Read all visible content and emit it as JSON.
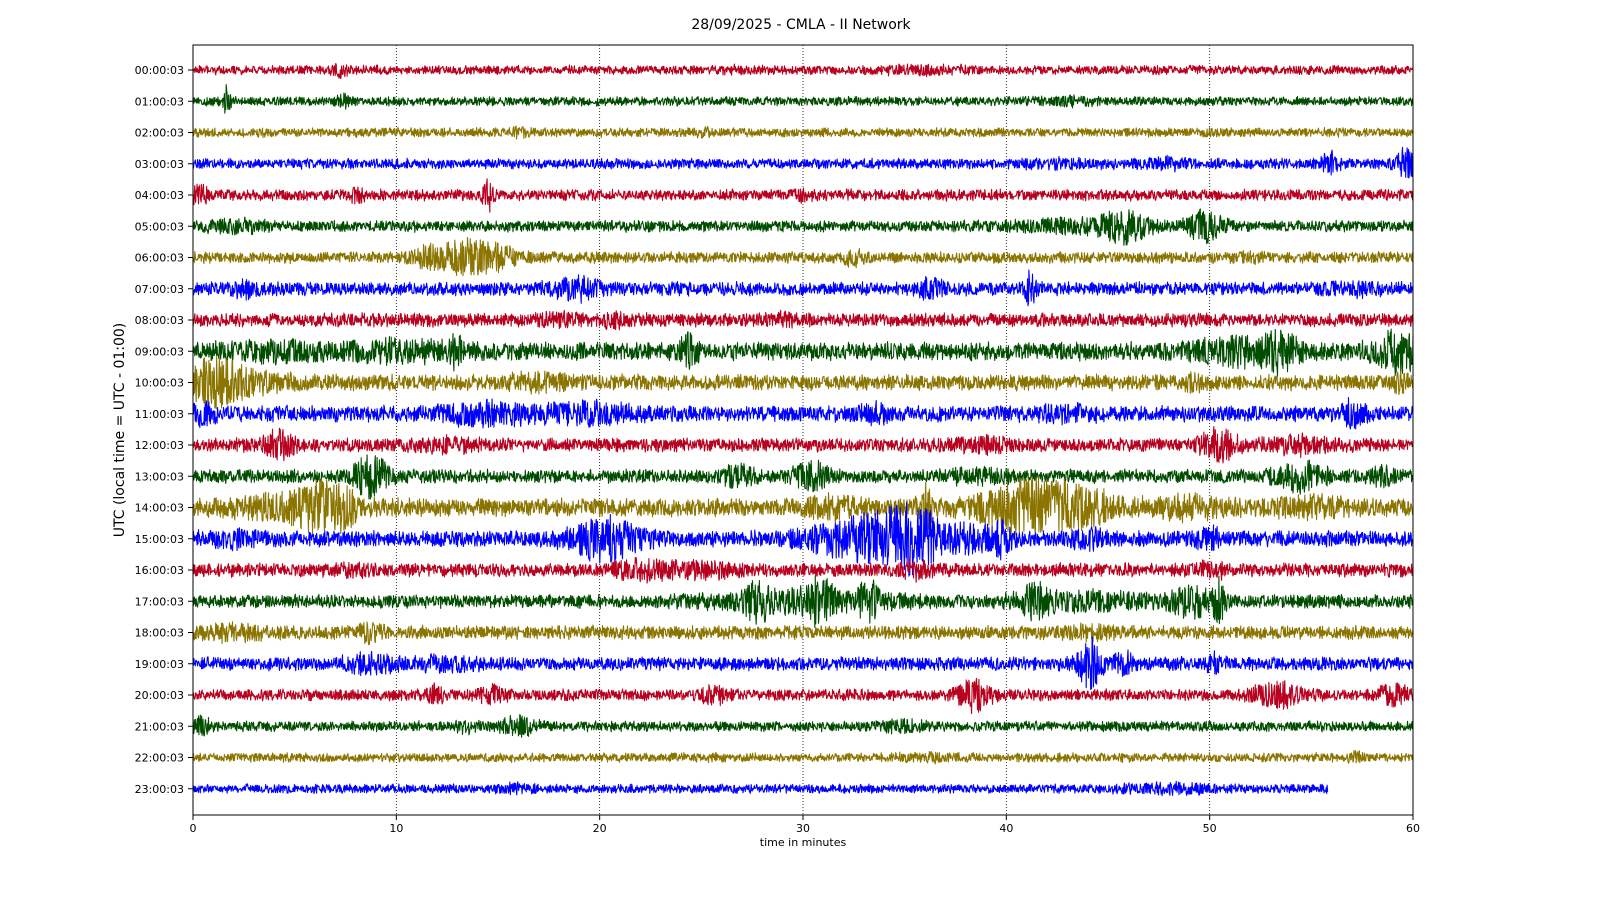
{
  "chart_data": {
    "type": "line",
    "title": "28/09/2025 - CMLA - II Network",
    "xlabel": "time in minutes",
    "ylabel": "UTC (local time = UTC - 01:00)",
    "xlim": [
      0,
      60
    ],
    "xticks": [
      0,
      10,
      20,
      30,
      40,
      50,
      60
    ],
    "grid": "vertical dotted at x ticks",
    "colors": [
      "#b8001f",
      "#004d00",
      "#8b7500",
      "#0000ff"
    ],
    "series": [
      {
        "label": "00:00:03",
        "end": 60,
        "amp": 4,
        "events": [
          [
            7.2,
            4,
            0.3
          ],
          [
            36,
            2,
            1.5
          ],
          [
            26.5,
            1.5,
            0.5
          ]
        ]
      },
      {
        "label": "01:00:03",
        "end": 60,
        "amp": 4,
        "events": [
          [
            1.6,
            14,
            0.15
          ],
          [
            7.4,
            5,
            0.2
          ],
          [
            43,
            2,
            1
          ]
        ]
      },
      {
        "label": "02:00:03",
        "end": 60,
        "amp": 4,
        "events": [
          [
            16,
            3,
            0.3
          ],
          [
            25,
            2,
            0.3
          ]
        ]
      },
      {
        "label": "03:00:03",
        "end": 60,
        "amp": 4.5,
        "events": [
          [
            55.9,
            10,
            0.3
          ],
          [
            59.7,
            14,
            0.4
          ],
          [
            48,
            3,
            1
          ],
          [
            43,
            2,
            1.5
          ]
        ]
      },
      {
        "label": "04:00:03",
        "end": 60,
        "amp": 5,
        "events": [
          [
            14.5,
            15,
            0.15
          ],
          [
            0.3,
            8,
            0.3
          ],
          [
            8,
            4,
            0.3
          ],
          [
            30,
            3,
            0.3
          ]
        ]
      },
      {
        "label": "05:00:03",
        "end": 60,
        "amp": 5,
        "events": [
          [
            45.8,
            12,
            0.8
          ],
          [
            49.8,
            14,
            0.6
          ],
          [
            2,
            4,
            1
          ],
          [
            43,
            4,
            2
          ]
        ]
      },
      {
        "label": "06:00:03",
        "end": 60,
        "amp": 5,
        "events": [
          [
            13.3,
            14,
            0.8
          ],
          [
            11.5,
            7,
            0.6
          ],
          [
            15,
            8,
            0.8
          ],
          [
            32.5,
            5,
            0.4
          ],
          [
            52,
            3,
            0.4
          ]
        ]
      },
      {
        "label": "07:00:03",
        "end": 60,
        "amp": 6,
        "events": [
          [
            41.2,
            15,
            0.2
          ],
          [
            18.8,
            8,
            0.8
          ],
          [
            36.2,
            7,
            0.4
          ],
          [
            2.5,
            5,
            0.5
          ],
          [
            57,
            3,
            1
          ]
        ]
      },
      {
        "label": "08:00:03",
        "end": 60,
        "amp": 6,
        "events": [
          [
            20.8,
            5,
            0.4
          ],
          [
            18,
            4,
            0.6
          ],
          [
            29,
            3,
            0.4
          ]
        ]
      },
      {
        "label": "09:00:03",
        "end": 60,
        "amp": 8,
        "events": [
          [
            12.9,
            10,
            0.2
          ],
          [
            24.4,
            13,
            0.3
          ],
          [
            51.5,
            10,
            1.5
          ],
          [
            53.5,
            12,
            0.5
          ],
          [
            59.2,
            16,
            0.8
          ],
          [
            10,
            6,
            2
          ],
          [
            4,
            4,
            2
          ]
        ]
      },
      {
        "label": "10:00:03",
        "end": 60,
        "amp": 7,
        "events": [
          [
            1,
            16,
            0.8
          ],
          [
            2.5,
            8,
            1.5
          ],
          [
            17,
            5,
            1
          ],
          [
            49.2,
            6,
            0.3
          ],
          [
            59.5,
            6,
            0.4
          ]
        ]
      },
      {
        "label": "11:00:03",
        "end": 60,
        "amp": 7,
        "events": [
          [
            0.5,
            8,
            0.4
          ],
          [
            14.5,
            8,
            1.5
          ],
          [
            19.5,
            7,
            1.5
          ],
          [
            33.5,
            6,
            0.5
          ],
          [
            57,
            10,
            0.4
          ],
          [
            43,
            4,
            1
          ]
        ]
      },
      {
        "label": "12:00:03",
        "end": 60,
        "amp": 6,
        "events": [
          [
            4.2,
            10,
            0.6
          ],
          [
            50.4,
            14,
            0.6
          ],
          [
            54.2,
            6,
            1
          ],
          [
            12.5,
            4,
            1
          ],
          [
            39,
            4,
            1
          ]
        ]
      },
      {
        "label": "13:00:03",
        "end": 60,
        "amp": 6,
        "events": [
          [
            8.7,
            18,
            0.6
          ],
          [
            26.8,
            10,
            0.5
          ],
          [
            30.4,
            12,
            0.6
          ],
          [
            54.5,
            12,
            0.8
          ],
          [
            58.5,
            5,
            0.5
          ],
          [
            38.5,
            4,
            1
          ]
        ]
      },
      {
        "label": "14:00:03",
        "end": 60,
        "amp": 8,
        "events": [
          [
            6.2,
            14,
            0.7
          ],
          [
            7.5,
            10,
            0.4
          ],
          [
            36,
            20,
            0.2
          ],
          [
            40.8,
            20,
            1.5
          ],
          [
            43.5,
            12,
            1.5
          ],
          [
            5,
            8,
            2
          ],
          [
            31.5,
            6,
            1
          ],
          [
            49,
            6,
            1.2
          ],
          [
            55,
            5,
            1.5
          ]
        ]
      },
      {
        "label": "15:00:03",
        "end": 60,
        "amp": 7,
        "events": [
          [
            20.2,
            18,
            1.2
          ],
          [
            33,
            18,
            1.8
          ],
          [
            35.5,
            22,
            1
          ],
          [
            38.5,
            10,
            0.8
          ],
          [
            39.8,
            12,
            0.3
          ],
          [
            44,
            7,
            0.5
          ],
          [
            50,
            6,
            0.5
          ],
          [
            2,
            5,
            0.8
          ]
        ]
      },
      {
        "label": "16:00:03",
        "end": 60,
        "amp": 6,
        "events": [
          [
            22,
            7,
            1
          ],
          [
            25,
            5,
            1
          ],
          [
            35.5,
            6,
            0.6
          ],
          [
            50.2,
            5,
            0.5
          ],
          [
            8,
            4,
            0.5
          ]
        ]
      },
      {
        "label": "17:00:03",
        "end": 60,
        "amp": 6,
        "events": [
          [
            27.8,
            14,
            0.4
          ],
          [
            30.8,
            14,
            0.4
          ],
          [
            33.2,
            17,
            0.3
          ],
          [
            41.3,
            12,
            0.6
          ],
          [
            49.2,
            12,
            0.8
          ],
          [
            50.5,
            18,
            0.2
          ],
          [
            30,
            8,
            3
          ],
          [
            44,
            6,
            2
          ]
        ]
      },
      {
        "label": "18:00:03",
        "end": 60,
        "amp": 6,
        "events": [
          [
            8.7,
            6,
            0.4
          ],
          [
            2,
            5,
            1
          ],
          [
            44,
            3,
            1
          ]
        ]
      },
      {
        "label": "19:00:03",
        "end": 60,
        "amp": 6,
        "events": [
          [
            44.1,
            24,
            0.4
          ],
          [
            8.7,
            7,
            0.8
          ],
          [
            45.8,
            8,
            0.4
          ],
          [
            50.2,
            6,
            0.3
          ],
          [
            12.5,
            4,
            1
          ]
        ]
      },
      {
        "label": "20:00:03",
        "end": 60,
        "amp": 5,
        "events": [
          [
            38.4,
            13,
            0.6
          ],
          [
            53.3,
            11,
            0.8
          ],
          [
            11.9,
            8,
            0.3
          ],
          [
            14.7,
            7,
            0.4
          ],
          [
            25.7,
            6,
            0.5
          ],
          [
            59,
            7,
            0.6
          ]
        ]
      },
      {
        "label": "21:00:03",
        "end": 60,
        "amp": 4.5,
        "events": [
          [
            0.4,
            7,
            0.3
          ],
          [
            16,
            7,
            0.6
          ],
          [
            13.4,
            5,
            0.3
          ],
          [
            35,
            3,
            1
          ]
        ]
      },
      {
        "label": "22:00:03",
        "end": 60,
        "amp": 4,
        "events": [
          [
            57.3,
            4,
            0.3
          ],
          [
            36,
            2,
            1
          ]
        ]
      },
      {
        "label": "23:00:03",
        "end": 55.8,
        "amp": 4,
        "events": [
          [
            16,
            3,
            0.5
          ],
          [
            48,
            3,
            1.5
          ]
        ]
      }
    ]
  }
}
